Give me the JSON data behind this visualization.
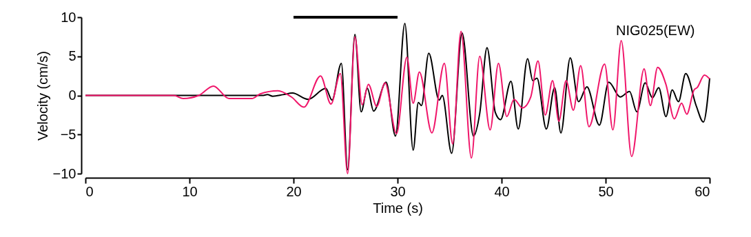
{
  "chart_data": {
    "type": "line",
    "xlabel": "Time (s)",
    "ylabel": "Velocity (cm/s)",
    "xlim": [
      0,
      60
    ],
    "xticks": [
      0,
      10,
      20,
      30,
      40,
      50,
      60
    ],
    "ylim": [
      -10,
      10
    ],
    "yticks": [
      -10,
      -5,
      0,
      5,
      10
    ],
    "grid": false,
    "marker": "none",
    "line_style": "solid",
    "annotations": [
      "NIG025(EW)"
    ],
    "series": [
      {
        "color": "#000000",
        "x": [
          0,
          8.5,
          17,
          17.5,
          18,
          19,
          19.9,
          21.4,
          23.1,
          23.7,
          24.6,
          25.2,
          25.9,
          26.5,
          27.1,
          27.7,
          28.9,
          29.8,
          30.7,
          31.5,
          32.0,
          32.3,
          33.0,
          34.0,
          34.3,
          35.2,
          36.2,
          37.3,
          37.9,
          38.6,
          39.4,
          39.9,
          40.9,
          41.6,
          42.5,
          43.0,
          43.4,
          44.3,
          45.1,
          45.7,
          46.6,
          47.4,
          48.2,
          49.4,
          50.3,
          51.4,
          52.3,
          53.0,
          53.8,
          54.5,
          55.1,
          55.8,
          56.4,
          57.0,
          57.7,
          58.7,
          59.4,
          60
        ],
        "values": [
          0,
          0,
          0,
          0.1,
          -0.1,
          0.1,
          0.3,
          -0.5,
          0.9,
          -0.6,
          4.1,
          -9.5,
          7.8,
          -2.1,
          0.9,
          -2.0,
          1.7,
          -5.2,
          9.2,
          -7.0,
          -0.9,
          -1.3,
          5.4,
          -0.6,
          0,
          -7.4,
          8.0,
          -5.2,
          -2.3,
          6.1,
          -2.2,
          -3.1,
          1.8,
          -4.3,
          4.7,
          1.9,
          2.2,
          -4.3,
          1.0,
          -4.8,
          4.8,
          -0.8,
          1.1,
          -3.8,
          1.7,
          -0.2,
          0.5,
          -2.1,
          1.6,
          -0.3,
          1.0,
          -2.7,
          0.7,
          -0.8,
          2.8,
          -1.3,
          -3.4,
          2.2
        ]
      },
      {
        "color": "#f0166a",
        "x": [
          0,
          8.5,
          9.4,
          10.9,
          12.3,
          13.8,
          16.0,
          16.8,
          18.5,
          19.8,
          21.0,
          22.6,
          23.6,
          24.5,
          25.2,
          25.9,
          26.6,
          27.2,
          28.0,
          28.8,
          29.9,
          30.9,
          31.5,
          32.1,
          33.3,
          34.5,
          35.3,
          36.1,
          37.1,
          37.9,
          38.9,
          39.7,
          40.5,
          41.2,
          42.0,
          42.8,
          43.5,
          44.2,
          44.9,
          45.5,
          46.2,
          46.9,
          47.6,
          48.4,
          49.9,
          50.7,
          51.5,
          52.5,
          53.7,
          54.3,
          55.0,
          55.8,
          56.6,
          57.3,
          57.8,
          58.5,
          58.8,
          59.5,
          60
        ],
        "values": [
          0,
          0,
          -0.4,
          0,
          1.2,
          -0.4,
          -0.4,
          0.2,
          0.6,
          -0.2,
          -1.5,
          2.5,
          -1.1,
          2.8,
          -10,
          7.5,
          -1.2,
          1.4,
          -1.4,
          1.6,
          -4.9,
          4.9,
          -1.0,
          3.0,
          -4.8,
          4.1,
          -6.2,
          8.2,
          -8.0,
          5.0,
          -4.4,
          4.1,
          -2.7,
          -0.5,
          -1.6,
          -0.2,
          4.4,
          -2.5,
          1.9,
          -3.3,
          1.9,
          -1.9,
          3.8,
          -4.0,
          4.0,
          -4.4,
          7.0,
          -7.8,
          3.4,
          -1.3,
          3.6,
          1.4,
          -3.0,
          -1.0,
          -2.4,
          0.7,
          1.0,
          2.6,
          2.1
        ]
      },
      {
        "color": "#000000",
        "x": [
          20,
          30
        ],
        "values": [
          10,
          10
        ]
      }
    ]
  }
}
